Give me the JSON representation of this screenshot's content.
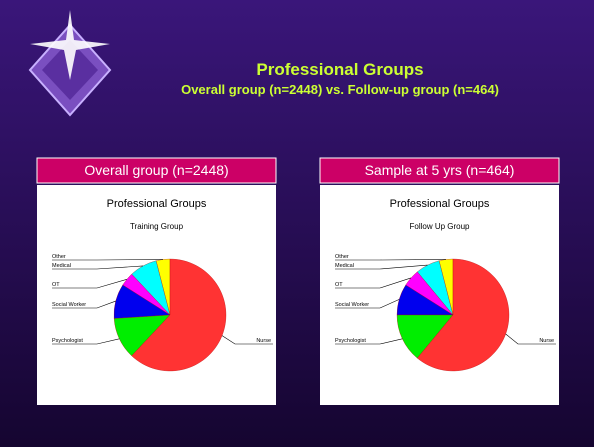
{
  "slide": {
    "title": "Professional Groups",
    "subtitle": "Overall group (n=2448) vs. Follow-up group (n=464)",
    "panels": [
      "Overall group (n=2448)",
      "Sample at 5 yrs (n=464)"
    ]
  },
  "chart_data": [
    {
      "type": "pie",
      "title": "Professional Groups",
      "subtitle": "Training Group",
      "categories": [
        "Other",
        "Medical",
        "OT",
        "Social Worker",
        "Psychologist",
        "Nurse"
      ],
      "values": [
        4,
        8,
        4,
        10,
        12,
        62
      ],
      "colors": [
        "#ffff00",
        "#00ffff",
        "#ff00ff",
        "#0000ee",
        "#00ee00",
        "#ff3333"
      ]
    },
    {
      "type": "pie",
      "title": "Professional Groups",
      "subtitle": "Follow Up Group",
      "categories": [
        "Other",
        "Medical",
        "OT",
        "Social Worker",
        "Psychologist",
        "Nurse"
      ],
      "values": [
        4,
        7,
        5,
        9,
        14,
        61
      ],
      "colors": [
        "#ffff00",
        "#00ffff",
        "#ff00ff",
        "#0000ee",
        "#00ee00",
        "#ff3333"
      ]
    }
  ]
}
